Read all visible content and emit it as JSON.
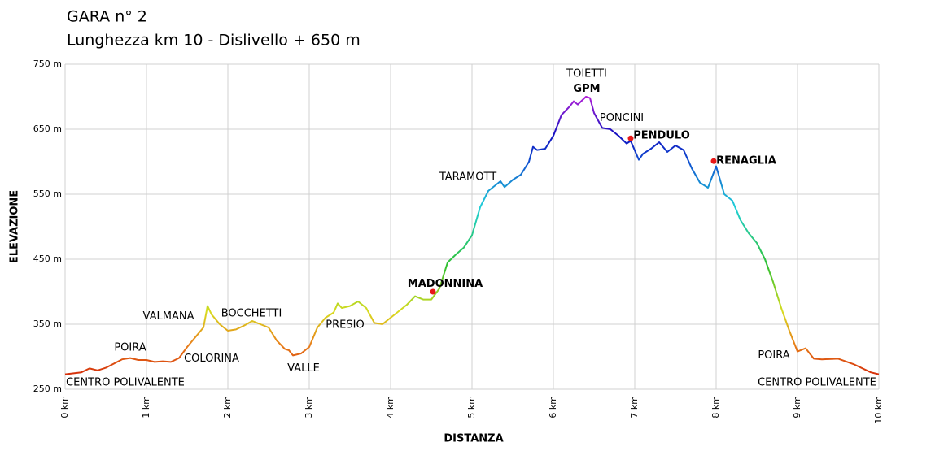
{
  "chart_data": {
    "type": "line",
    "title": "GARA n° 2",
    "subtitle": "Lunghezza km 10 - Dislivello + 650 m",
    "x_label": "DISTANZA",
    "y_label": "ELEVAZIONE",
    "xlim": [
      0,
      10
    ],
    "ylim": [
      250,
      750
    ],
    "xticks": [
      {
        "value": 0,
        "label": "0 km"
      },
      {
        "value": 1,
        "label": "1 km"
      },
      {
        "value": 2,
        "label": "2 km"
      },
      {
        "value": 3,
        "label": "3 km"
      },
      {
        "value": 4,
        "label": "4 km"
      },
      {
        "value": 5,
        "label": "5 km"
      },
      {
        "value": 6,
        "label": "6 km"
      },
      {
        "value": 7,
        "label": "7 km"
      },
      {
        "value": 8,
        "label": "8 km"
      },
      {
        "value": 9,
        "label": "9 km"
      },
      {
        "value": 10,
        "label": "10 km"
      }
    ],
    "yticks": [
      {
        "value": 250,
        "label": "250 m"
      },
      {
        "value": 350,
        "label": "350 m"
      },
      {
        "value": 450,
        "label": "450 m"
      },
      {
        "value": 550,
        "label": "550 m"
      },
      {
        "value": 650,
        "label": "650 m"
      },
      {
        "value": 750,
        "label": "750 m"
      }
    ],
    "grid": true,
    "color_stops": [
      {
        "value": 270,
        "color": "#d42a0a"
      },
      {
        "value": 320,
        "color": "#e8821a"
      },
      {
        "value": 370,
        "color": "#d8dc20"
      },
      {
        "value": 440,
        "color": "#30c030"
      },
      {
        "value": 530,
        "color": "#20d0d8"
      },
      {
        "value": 600,
        "color": "#1050d0"
      },
      {
        "value": 640,
        "color": "#1010c0"
      },
      {
        "value": 700,
        "color": "#b020d8"
      }
    ],
    "marker_color": "#e81818",
    "x": [
      0,
      0.2,
      0.3,
      0.4,
      0.5,
      0.7,
      0.8,
      0.9,
      1.0,
      1.1,
      1.2,
      1.3,
      1.4,
      1.5,
      1.6,
      1.7,
      1.75,
      1.8,
      1.9,
      2.0,
      2.1,
      2.2,
      2.3,
      2.4,
      2.5,
      2.6,
      2.7,
      2.75,
      2.8,
      2.9,
      3.0,
      3.1,
      3.2,
      3.3,
      3.35,
      3.4,
      3.5,
      3.6,
      3.7,
      3.8,
      3.9,
      4.0,
      4.1,
      4.2,
      4.3,
      4.4,
      4.5,
      4.6,
      4.7,
      4.8,
      4.9,
      5.0,
      5.1,
      5.2,
      5.3,
      5.35,
      5.4,
      5.5,
      5.6,
      5.7,
      5.75,
      5.8,
      5.9,
      6.0,
      6.1,
      6.2,
      6.25,
      6.3,
      6.4,
      6.45,
      6.5,
      6.6,
      6.7,
      6.8,
      6.9,
      6.95,
      7.05,
      7.1,
      7.2,
      7.3,
      7.4,
      7.5,
      7.6,
      7.7,
      7.8,
      7.9,
      8.0,
      8.1,
      8.2,
      8.3,
      8.4,
      8.5,
      8.6,
      8.7,
      8.8,
      8.9,
      9.0,
      9.1,
      9.2,
      9.3,
      9.5,
      9.7,
      9.9,
      10.0
    ],
    "values": [
      273,
      276,
      282,
      279,
      283,
      296,
      298,
      295,
      295,
      292,
      293,
      292,
      298,
      315,
      330,
      345,
      378,
      365,
      350,
      340,
      342,
      348,
      355,
      350,
      345,
      325,
      312,
      310,
      302,
      305,
      315,
      345,
      360,
      368,
      382,
      375,
      378,
      385,
      375,
      352,
      350,
      360,
      370,
      380,
      393,
      388,
      388,
      405,
      445,
      457,
      468,
      487,
      530,
      555,
      565,
      570,
      561,
      572,
      580,
      600,
      623,
      618,
      620,
      640,
      672,
      685,
      693,
      688,
      700,
      698,
      675,
      652,
      650,
      640,
      628,
      632,
      603,
      612,
      620,
      630,
      615,
      625,
      618,
      590,
      568,
      560,
      593,
      550,
      540,
      510,
      490,
      475,
      450,
      415,
      375,
      340,
      308,
      313,
      297,
      296,
      297,
      288,
      276,
      273
    ],
    "annotations": [
      {
        "text": "CENTRO POLIVALENTE",
        "x": 0.74,
        "y": 260
      },
      {
        "text": "POIRA",
        "x": 0.8,
        "y": 314
      },
      {
        "text": "VALMANA",
        "x": 1.27,
        "y": 362
      },
      {
        "text": "COLORINA",
        "x": 1.8,
        "y": 297
      },
      {
        "text": "BOCCHETTI",
        "x": 2.29,
        "y": 366
      },
      {
        "text": "VALLE",
        "x": 2.93,
        "y": 282
      },
      {
        "text": "PRESIO",
        "x": 3.44,
        "y": 349
      },
      {
        "text": "MADONNINA",
        "x": 4.67,
        "y": 412,
        "bold": true,
        "point": [
          4.52,
          400
        ]
      },
      {
        "text": "TARAMOTT",
        "x": 4.95,
        "y": 576
      },
      {
        "text": "TOIETTI",
        "x": 6.41,
        "y": 735
      },
      {
        "text": "GPM",
        "x": 6.41,
        "y": 712,
        "bold": true
      },
      {
        "text": "PONCINI",
        "x": 6.84,
        "y": 667
      },
      {
        "text": "PENDULO",
        "x": 7.33,
        "y": 640,
        "bold": true,
        "point": [
          6.95,
          636
        ]
      },
      {
        "text": "RENAGLIA",
        "x": 8.37,
        "y": 601,
        "bold": true,
        "point": [
          7.97,
          601
        ]
      },
      {
        "text": "POIRA",
        "x": 8.71,
        "y": 302
      },
      {
        "text": "CENTRO POLIVALENTE",
        "x": 9.24,
        "y": 260
      }
    ]
  }
}
